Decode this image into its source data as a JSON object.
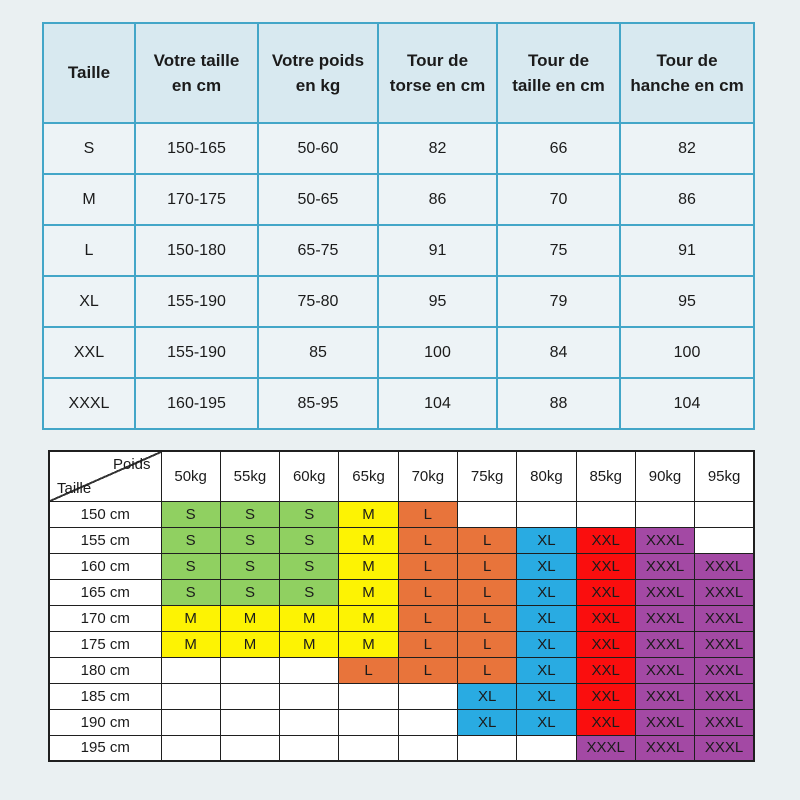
{
  "colors": {
    "page_bg": "#EAF0F2",
    "size_table": {
      "border": "#43A6C8",
      "header_bg": "#D8E9F0",
      "body_bg": "#EDF3F6"
    },
    "matrix": {
      "border": "#1f1f1f",
      "empty_bg": "#FFFFFF"
    },
    "size_colors": {
      "S": "#90D061",
      "M": "#FDF303",
      "L": "#E8743B",
      "XL": "#29ABE2",
      "XXL": "#FA0E0E",
      "XXXL": "#A349A4"
    }
  },
  "size_table": {
    "headers": [
      "Taille",
      "Votre taille\nen cm",
      "Votre poids\nen kg",
      "Tour de\ntorse en cm",
      "Tour de\ntaille en cm",
      "Tour de\nhanche en cm"
    ],
    "rows": [
      [
        "S",
        "150-165",
        "50-60",
        "82",
        "66",
        "82"
      ],
      [
        "M",
        "170-175",
        "50-65",
        "86",
        "70",
        "86"
      ],
      [
        "L",
        "150-180",
        "65-75",
        "91",
        "75",
        "91"
      ],
      [
        "XL",
        "155-190",
        "75-80",
        "95",
        "79",
        "95"
      ],
      [
        "XXL",
        "155-190",
        "85",
        "100",
        "84",
        "100"
      ],
      [
        "XXXL",
        "160-195",
        "85-95",
        "104",
        "88",
        "104"
      ]
    ]
  },
  "matrix": {
    "corner": {
      "top_label": "Poids",
      "bottom_label": "Taille"
    },
    "weight_headers": [
      "50kg",
      "55kg",
      "60kg",
      "65kg",
      "70kg",
      "75kg",
      "80kg",
      "85kg",
      "90kg",
      "95kg"
    ],
    "rows": [
      {
        "height": "150 cm",
        "cells": [
          "S",
          "S",
          "S",
          "M",
          "L",
          "",
          "",
          "",
          "",
          ""
        ]
      },
      {
        "height": "155 cm",
        "cells": [
          "S",
          "S",
          "S",
          "M",
          "L",
          "L",
          "XL",
          "XXL",
          "XXXL",
          ""
        ]
      },
      {
        "height": "160 cm",
        "cells": [
          "S",
          "S",
          "S",
          "M",
          "L",
          "L",
          "XL",
          "XXL",
          "XXXL",
          "XXXL"
        ]
      },
      {
        "height": "165 cm",
        "cells": [
          "S",
          "S",
          "S",
          "M",
          "L",
          "L",
          "XL",
          "XXL",
          "XXXL",
          "XXXL"
        ]
      },
      {
        "height": "170 cm",
        "cells": [
          "M",
          "M",
          "M",
          "M",
          "L",
          "L",
          "XL",
          "XXL",
          "XXXL",
          "XXXL"
        ]
      },
      {
        "height": "175 cm",
        "cells": [
          "M",
          "M",
          "M",
          "M",
          "L",
          "L",
          "XL",
          "XXL",
          "XXXL",
          "XXXL"
        ]
      },
      {
        "height": "180 cm",
        "cells": [
          "",
          "",
          "",
          "L",
          "L",
          "L",
          "XL",
          "XXL",
          "XXXL",
          "XXXL"
        ]
      },
      {
        "height": "185 cm",
        "cells": [
          "",
          "",
          "",
          "",
          "",
          "XL",
          "XL",
          "XXL",
          "XXXL",
          "XXXL"
        ]
      },
      {
        "height": "190 cm",
        "cells": [
          "",
          "",
          "",
          "",
          "",
          "XL",
          "XL",
          "XXL",
          "XXXL",
          "XXXL"
        ]
      },
      {
        "height": "195 cm",
        "cells": [
          "",
          "",
          "",
          "",
          "",
          "",
          "",
          "XXXL",
          "XXXL",
          "XXXL"
        ]
      }
    ]
  }
}
